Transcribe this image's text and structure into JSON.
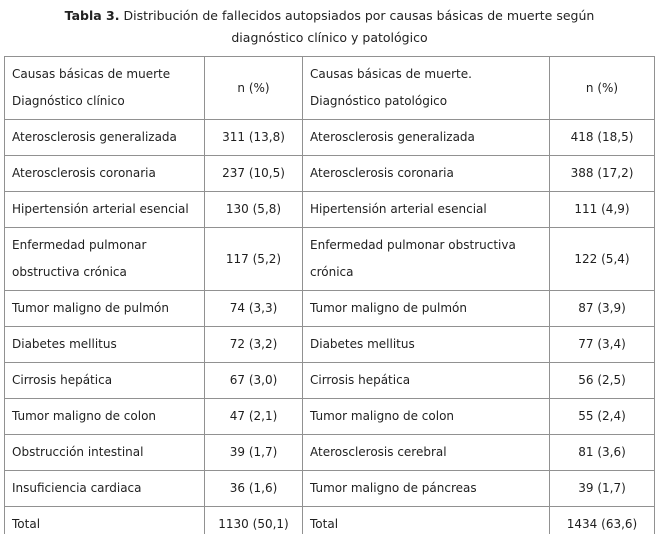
{
  "caption": {
    "label": "Tabla 3.",
    "line1_rest": " Distribución de fallecidos autopsiados por causas básicas de muerte según",
    "line2": "diagnóstico clínico y patológico"
  },
  "table": {
    "headers": [
      {
        "line1": "Causas básicas de muerte",
        "line2": "Diagnóstico clínico"
      },
      {
        "line1": "n (%)",
        "line2": ""
      },
      {
        "line1": "Causas básicas de muerte.",
        "line2": "Diagnóstico patológico"
      },
      {
        "line1": "n (%)",
        "line2": ""
      }
    ],
    "rows": [
      [
        "Aterosclerosis generalizada",
        "311 (13,8)",
        "Aterosclerosis generalizada",
        "418 (18,5)"
      ],
      [
        "Aterosclerosis coronaria",
        "237 (10,5)",
        "Aterosclerosis coronaria",
        "388 (17,2)"
      ],
      [
        "Hipertensión arterial esencial",
        "130 (5,8)",
        "Hipertensión arterial esencial",
        "111 (4,9)"
      ],
      [
        "Enfermedad pulmonar obstructiva crónica",
        "117 (5,2)",
        "Enfermedad pulmonar obstructiva crónica",
        "122 (5,4)"
      ],
      [
        "Tumor maligno de pulmón",
        "74 (3,3)",
        "Tumor maligno de pulmón",
        "87 (3,9)"
      ],
      [
        "Diabetes mellitus",
        "72 (3,2)",
        "Diabetes mellitus",
        "77 (3,4)"
      ],
      [
        "Cirrosis hepática",
        "67 (3,0)",
        "Cirrosis hepática",
        "56 (2,5)"
      ],
      [
        "Tumor maligno de colon",
        "47 (2,1)",
        "Tumor maligno de colon",
        "55 (2,4)"
      ],
      [
        "Obstrucción intestinal",
        "39 (1,7)",
        "Aterosclerosis cerebral",
        "81 (3,6)"
      ],
      [
        "Insuficiencia cardiaca",
        "36 (1,6)",
        "Tumor maligno de páncreas",
        "39 (1,7)"
      ],
      [
        "Total",
        "1130 (50,1)",
        "Total",
        "1434 (63,6)"
      ]
    ]
  },
  "colors": {
    "border": "#919191",
    "text": "#1f1f1f",
    "background": "#ffffff"
  }
}
